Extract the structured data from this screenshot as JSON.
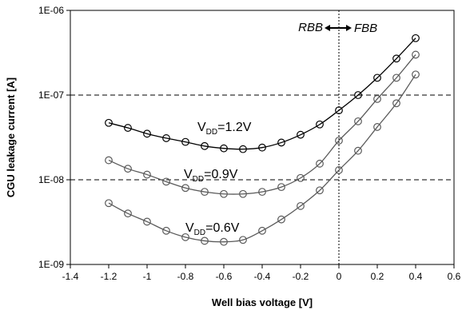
{
  "chart_data": {
    "type": "line",
    "xlabel": "Well bias voltage [V]",
    "ylabel": "CGU leakage current [A]",
    "xlim": [
      -1.4,
      0.6
    ],
    "ylim": [
      1e-09,
      1e-06
    ],
    "y_scale": "log",
    "x_ticks": [
      -1.4,
      -1.2,
      -1.0,
      -0.8,
      -0.6,
      -0.4,
      -0.2,
      0,
      0.2,
      0.4,
      0.6
    ],
    "x_tick_labels": [
      "-1.4",
      "-1.2",
      "-1",
      "-0.8",
      "-0.6",
      "-0.4",
      "-0.2",
      "0",
      "0.2",
      "0.4",
      "0.6"
    ],
    "y_ticks": [
      1e-09,
      1e-08,
      1e-07,
      1e-06
    ],
    "y_tick_labels": [
      "1E-09",
      "1E-08",
      "1E-07",
      "1E-06"
    ],
    "grid": "dashed horizontal lines at 1E-08 and 1E-07",
    "marker": "open circle",
    "x": [
      -1.2,
      -1.1,
      -1.0,
      -0.9,
      -0.8,
      -0.7,
      -0.6,
      -0.5,
      -0.4,
      -0.3,
      -0.2,
      -0.1,
      0.0,
      0.1,
      0.2,
      0.3,
      0.4
    ],
    "series": [
      {
        "label_main": "V",
        "label_sub": "DD",
        "label_value": "=1.2V",
        "color": "#000000",
        "values": [
          4.7e-08,
          4.1e-08,
          3.5e-08,
          3.1e-08,
          2.8e-08,
          2.5e-08,
          2.35e-08,
          2.3e-08,
          2.4e-08,
          2.75e-08,
          3.4e-08,
          4.5e-08,
          6.6e-08,
          1e-07,
          1.6e-07,
          2.7e-07,
          4.7e-07
        ]
      },
      {
        "label_main": "V",
        "label_sub": "DD",
        "label_value": "=0.9V",
        "color": "#5a5a5a",
        "values": [
          1.7e-08,
          1.35e-08,
          1.15e-08,
          9.5e-09,
          8e-09,
          7.2e-09,
          6.8e-09,
          6.8e-09,
          7.2e-09,
          8.2e-09,
          1.05e-08,
          1.55e-08,
          2.9e-08,
          4.9e-08,
          9e-08,
          1.6e-07,
          3e-07
        ]
      },
      {
        "label_main": "V",
        "label_sub": "DD",
        "label_value": "=0.6V",
        "color": "#5a5a5a",
        "values": [
          5.3e-09,
          4e-09,
          3.2e-09,
          2.5e-09,
          2.1e-09,
          1.9e-09,
          1.85e-09,
          1.95e-09,
          2.5e-09,
          3.4e-09,
          4.9e-09,
          7.5e-09,
          1.3e-08,
          2.2e-08,
          4.2e-08,
          8e-08,
          1.75e-07
        ]
      }
    ],
    "vline_x": 0,
    "annotations": {
      "left": "RBB",
      "right": "FBB"
    }
  }
}
